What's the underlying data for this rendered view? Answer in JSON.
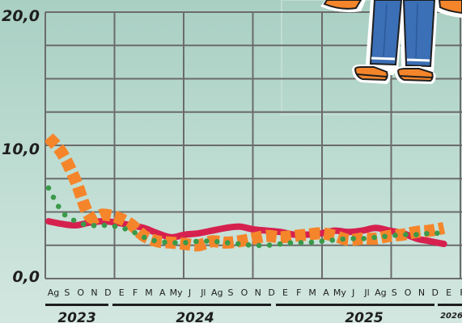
{
  "chart_data": {
    "type": "line",
    "ylim": [
      0,
      20
    ],
    "grid": true,
    "y_ticks": [
      "0,0",
      "10,0",
      "20,0"
    ],
    "month_labels": [
      "Ag",
      "S",
      "O",
      "N",
      "D",
      "E",
      "F",
      "M",
      "A",
      "My",
      "J",
      "Jl",
      "Ag",
      "S",
      "O",
      "N",
      "D",
      "E",
      "F",
      "M",
      "A",
      "My",
      "J",
      "Jl",
      "Ag",
      "S",
      "O",
      "N",
      "D",
      "E",
      "F"
    ],
    "year_labels": [
      "2023",
      "2024",
      "2025",
      "2026"
    ],
    "series": [
      {
        "name": "",
        "color": "#f5852a",
        "style": "thick-dashed",
        "values": [
          10.6,
          9.4,
          7.3,
          4.7,
          4.8,
          4.6,
          4.1,
          3.2,
          2.8,
          2.7,
          2.6,
          2.5,
          2.8,
          2.7,
          2.8,
          3.0,
          3.2,
          3.1,
          3.2,
          3.3,
          3.4,
          3.2,
          2.9,
          3.0,
          3.0,
          3.2,
          3.3,
          3.5,
          3.6,
          3.8
        ]
      },
      {
        "name": "",
        "color": "#d6214f",
        "style": "solid",
        "values": [
          4.3,
          4.1,
          4.0,
          4.2,
          4.3,
          4.2,
          4.0,
          3.8,
          3.4,
          3.1,
          3.3,
          3.4,
          3.6,
          3.8,
          3.9,
          3.7,
          3.6,
          3.5,
          3.3,
          3.3,
          3.4,
          3.6,
          3.5,
          3.6,
          3.8,
          3.6,
          3.4,
          3.0,
          2.8,
          2.6
        ]
      },
      {
        "name": "",
        "color": "#3a9a4a",
        "style": "dotted",
        "values": [
          6.8,
          5.0,
          4.3,
          4.0,
          4.0,
          3.9,
          3.6,
          3.1,
          2.8,
          2.7,
          2.7,
          2.8,
          2.8,
          2.7,
          2.6,
          2.5,
          2.5,
          2.6,
          2.7,
          2.7,
          2.8,
          2.9,
          3.0,
          3.0,
          3.1,
          3.2,
          3.3,
          3.3,
          3.4,
          3.4
        ]
      }
    ]
  }
}
